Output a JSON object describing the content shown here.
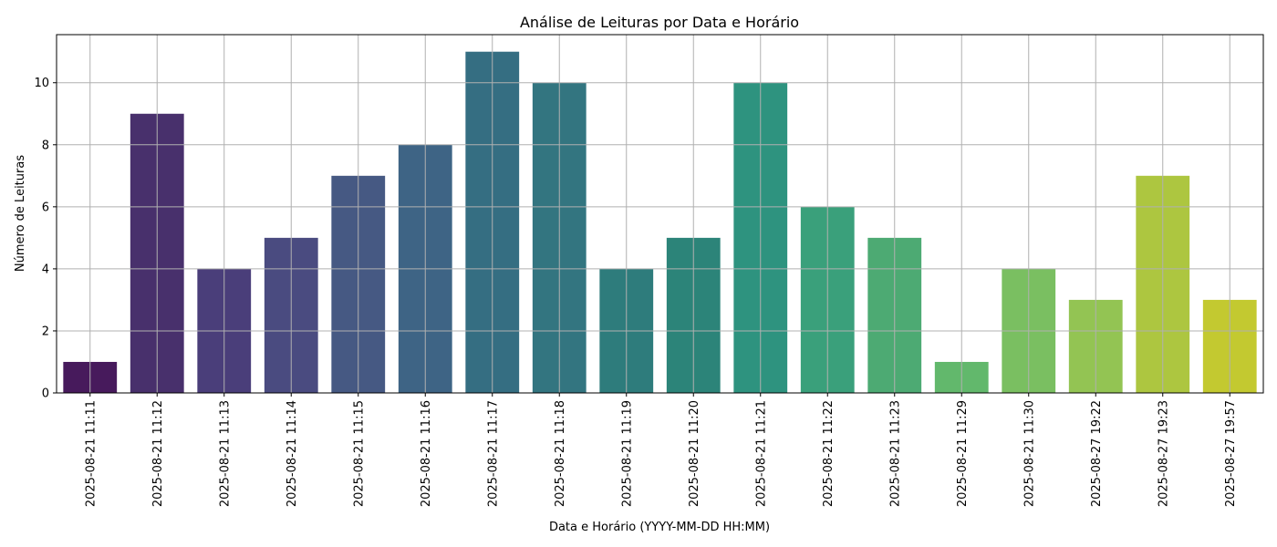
{
  "chart_data": {
    "type": "bar",
    "title": "Análise de Leituras por Data e Horário",
    "xlabel": "Data e Horário (YYYY-MM-DD HH:MM)",
    "ylabel": "Número de Leituras",
    "categories": [
      "2025-08-21 11:11",
      "2025-08-21 11:12",
      "2025-08-21 11:13",
      "2025-08-21 11:14",
      "2025-08-21 11:15",
      "2025-08-21 11:16",
      "2025-08-21 11:17",
      "2025-08-21 11:18",
      "2025-08-21 11:19",
      "2025-08-21 11:20",
      "2025-08-21 11:21",
      "2025-08-21 11:22",
      "2025-08-21 11:23",
      "2025-08-21 11:29",
      "2025-08-21 11:30",
      "2025-08-27 19:22",
      "2025-08-27 19:23",
      "2025-08-27 19:57"
    ],
    "values": [
      1,
      9,
      4,
      5,
      7,
      8,
      11,
      10,
      4,
      5,
      10,
      6,
      5,
      1,
      4,
      3,
      7,
      3
    ],
    "colors": [
      "#471a5c",
      "#48306c",
      "#4a3e7a",
      "#4a4b80",
      "#465983",
      "#3e6485",
      "#356e82",
      "#337580",
      "#2e7c7c",
      "#2c8479",
      "#2e937f",
      "#3aa07b",
      "#4daa73",
      "#62b86c",
      "#7abf61",
      "#93c453",
      "#adc640",
      "#c3c930"
    ],
    "yticks": [
      0,
      2,
      4,
      6,
      8,
      10
    ],
    "ylim": [
      0,
      11.55
    ],
    "grid": true,
    "legend": "none"
  }
}
